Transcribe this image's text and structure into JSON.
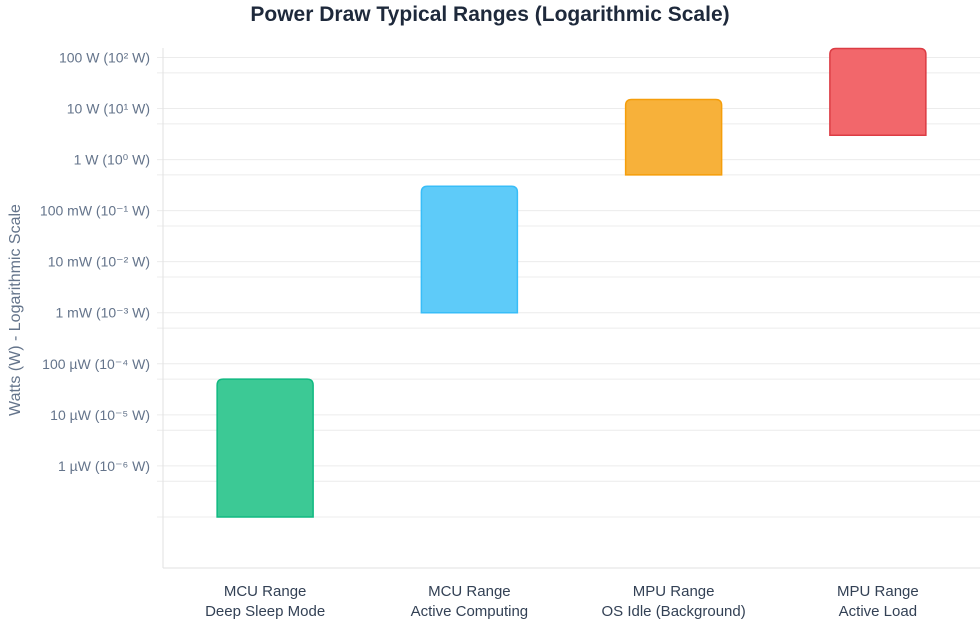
{
  "chart_data": {
    "type": "bar",
    "subtype": "floating-range",
    "title": "Power Draw Typical Ranges (Logarithmic Scale)",
    "ylabel": "Watts (W) - Logarithmic Scale",
    "xlabel": "",
    "yscale": "log",
    "ylim": [
      1e-08,
      140
    ],
    "grid": true,
    "legend": "none",
    "categories": [
      [
        "MCU Range",
        "Deep Sleep Mode"
      ],
      [
        "MCU Range",
        "Active Computing"
      ],
      [
        "MPU Range",
        "OS Idle (Background)"
      ],
      [
        "MPU Range",
        "Active Load"
      ]
    ],
    "ranges": [
      [
        1e-07,
        5e-05
      ],
      [
        0.001,
        0.3
      ],
      [
        0.5,
        15
      ],
      [
        3,
        150
      ]
    ],
    "colors": [
      "#3cc995",
      "#5ecbf9",
      "#f7b13a",
      "#f2676b"
    ],
    "border_colors": [
      "#10b981",
      "#38bdf8",
      "#f59e0b",
      "#dc3c44"
    ],
    "ytick_values": [
      100,
      10,
      1,
      0.1,
      0.01,
      0.001,
      0.0001,
      1e-05,
      1e-06
    ],
    "ytick_labels": [
      "100 W (10² W)",
      "10 W (10¹ W)",
      "1 W (10⁰ W)",
      "100 mW (10⁻¹ W)",
      "10 mW (10⁻² W)",
      "1 mW (10⁻³ W)",
      "100 µW (10⁻⁴ W)",
      "10 µW (10⁻⁵ W)",
      "1 µW (10⁻⁶ W)"
    ]
  }
}
